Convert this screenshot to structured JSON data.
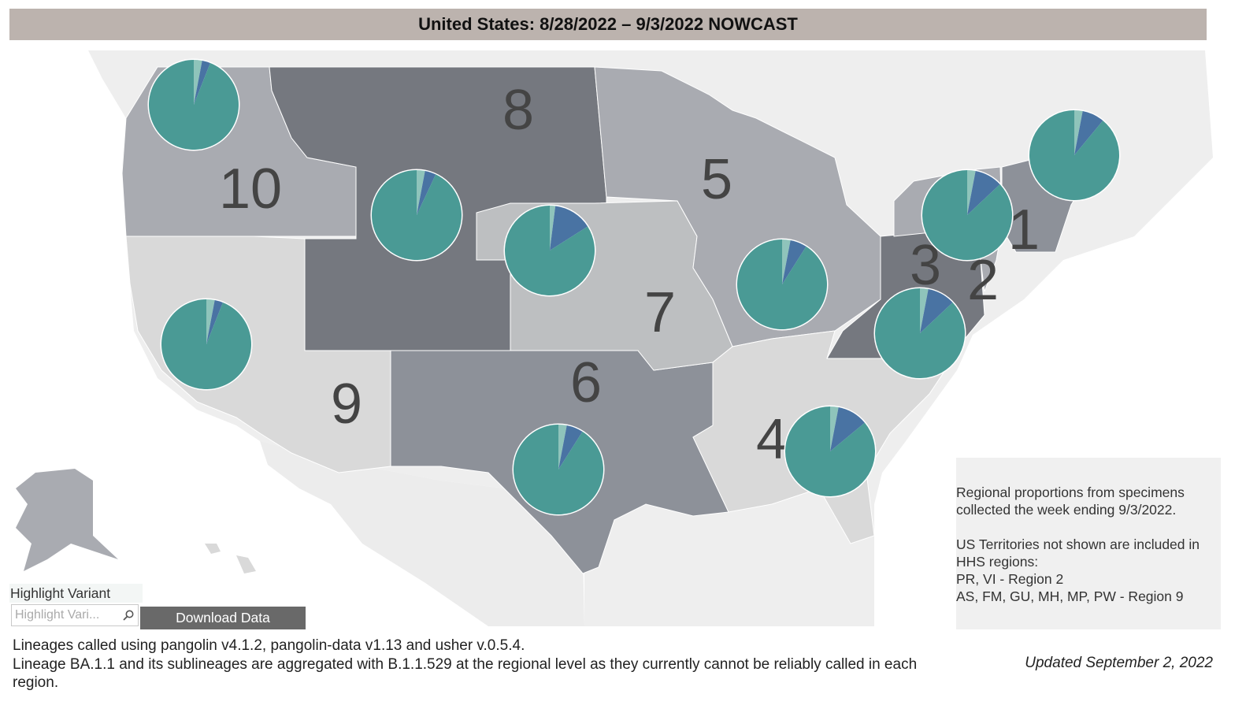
{
  "header": {
    "title": "United States: 8/28/2022 – 9/3/2022 NOWCAST"
  },
  "colors": {
    "main_variant": "#4a9a95",
    "second_variant": "#4973a3",
    "third_variant": "#8fc4bb",
    "region_gray_light": "#d9d9d9",
    "region_gray_mid": "#a9abb1",
    "region_gray_dark": "#75787f",
    "ocean": "#ffffff",
    "land_background": "#eeeeee"
  },
  "regions": [
    {
      "id": "1",
      "label": "1",
      "pie": {
        "main": 0.89,
        "second": 0.08,
        "third": 0.03
      }
    },
    {
      "id": "2",
      "label": "2",
      "pie": {
        "main": 0.87,
        "second": 0.1,
        "third": 0.03
      }
    },
    {
      "id": "3",
      "label": "3",
      "pie": {
        "main": 0.87,
        "second": 0.1,
        "third": 0.03
      }
    },
    {
      "id": "4",
      "label": "4",
      "pie": {
        "main": 0.86,
        "second": 0.11,
        "third": 0.03
      }
    },
    {
      "id": "5",
      "label": "5",
      "pie": {
        "main": 0.91,
        "second": 0.06,
        "third": 0.03
      }
    },
    {
      "id": "6",
      "label": "6",
      "pie": {
        "main": 0.91,
        "second": 0.06,
        "third": 0.03
      }
    },
    {
      "id": "7",
      "label": "7",
      "pie": {
        "main": 0.84,
        "second": 0.14,
        "third": 0.02
      }
    },
    {
      "id": "8",
      "label": "8",
      "pie": {
        "main": 0.93,
        "second": 0.04,
        "third": 0.03
      }
    },
    {
      "id": "9",
      "label": "9",
      "pie": {
        "main": 0.94,
        "second": 0.03,
        "third": 0.03
      }
    },
    {
      "id": "10",
      "label": "10",
      "pie": {
        "main": 0.94,
        "second": 0.03,
        "third": 0.03
      }
    }
  ],
  "info": {
    "lines": [
      "Regional proportions from specimens",
      "collected the week ending 9/3/2022.",
      "",
      "US Territories not shown are included in",
      "HHS regions:",
      "PR, VI - Region 2",
      "AS, FM, GU, MH, MP, PW - Region 9"
    ]
  },
  "highlight": {
    "label": "Highlight Variant",
    "placeholder": "Highlight Vari..."
  },
  "download_label": "Download Data",
  "footnotes": {
    "line1": "Lineages called using pangolin v4.1.2, pangolin-data v1.13 and usher v.0.5.4.",
    "line2": "Lineage BA.1.1 and its sublineages are aggregated with B.1.1.529 at the regional level as they currently cannot be reliably called in each region."
  },
  "updated": "Updated September 2, 2022"
}
